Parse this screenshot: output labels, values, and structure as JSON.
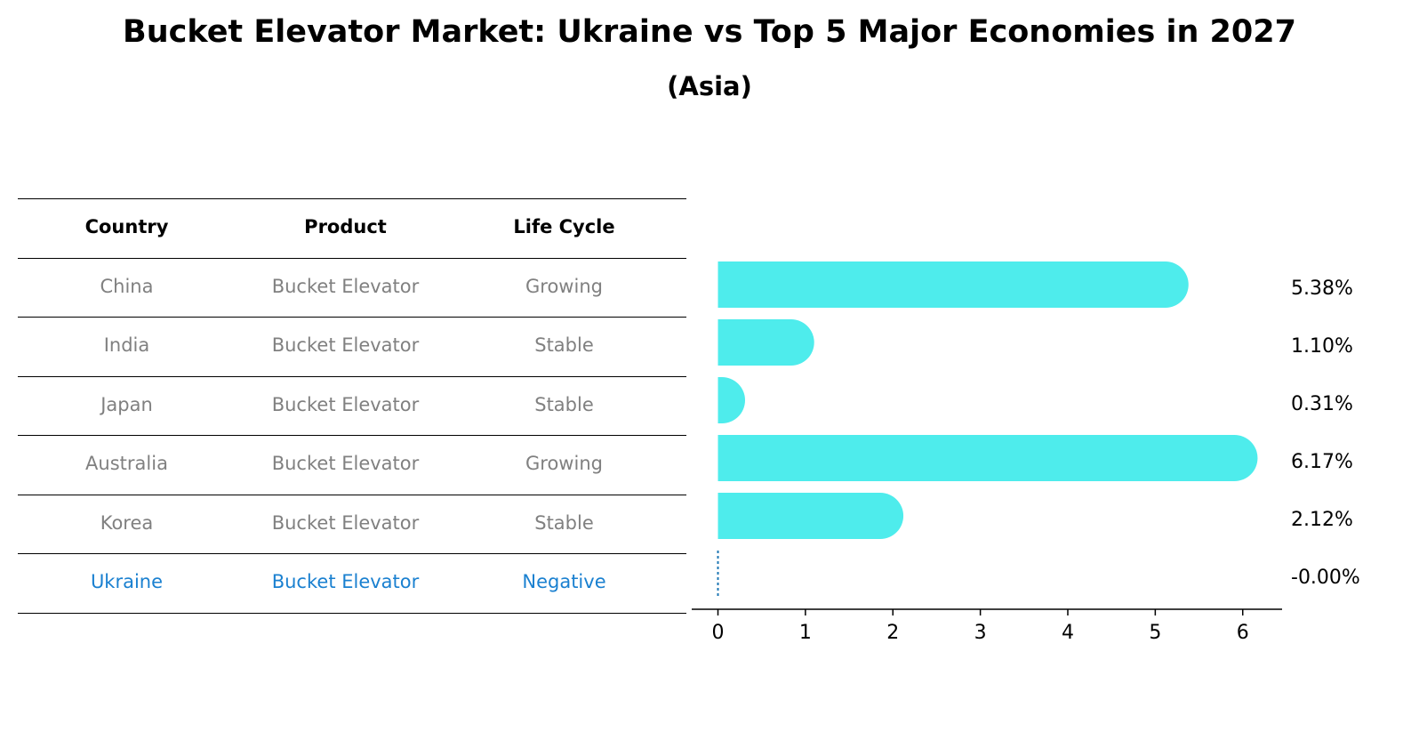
{
  "title": "Bucket Elevator Market: Ukraine vs Top 5 Major Economies in 2027",
  "subtitle": "(Asia)",
  "table": {
    "headers": [
      "Country",
      "Product",
      "Life Cycle"
    ],
    "rows": [
      [
        "China",
        "Bucket Elevator",
        "Growing"
      ],
      [
        "India",
        "Bucket Elevator",
        "Stable"
      ],
      [
        "Japan",
        "Bucket Elevator",
        "Stable"
      ],
      [
        "Australia",
        "Bucket Elevator",
        "Growing"
      ],
      [
        "Korea",
        "Bucket Elevator",
        "Stable"
      ],
      [
        "Ukraine",
        "Bucket Elevator",
        "Negative"
      ]
    ],
    "highlight_row": 5,
    "colors": {
      "text": "#808080",
      "highlight": "#1a80d0",
      "header": "#000000"
    }
  },
  "chart_data": {
    "type": "bar",
    "orientation": "horizontal",
    "categories": [
      "China",
      "India",
      "Japan",
      "Australia",
      "Korea",
      "Ukraine"
    ],
    "values": [
      5.38,
      1.1,
      0.31,
      6.17,
      2.12,
      -0.0
    ],
    "data_labels": [
      "5.38%",
      "1.10%",
      "0.31%",
      "6.17%",
      "2.12%",
      "-0.00%"
    ],
    "x_ticks": [
      0,
      1,
      2,
      3,
      4,
      5,
      6
    ],
    "xlim": [
      -0.3,
      6.45
    ],
    "bar_color": "#4eecec",
    "zero_marker_color": "#1f77b4",
    "grid": false
  }
}
